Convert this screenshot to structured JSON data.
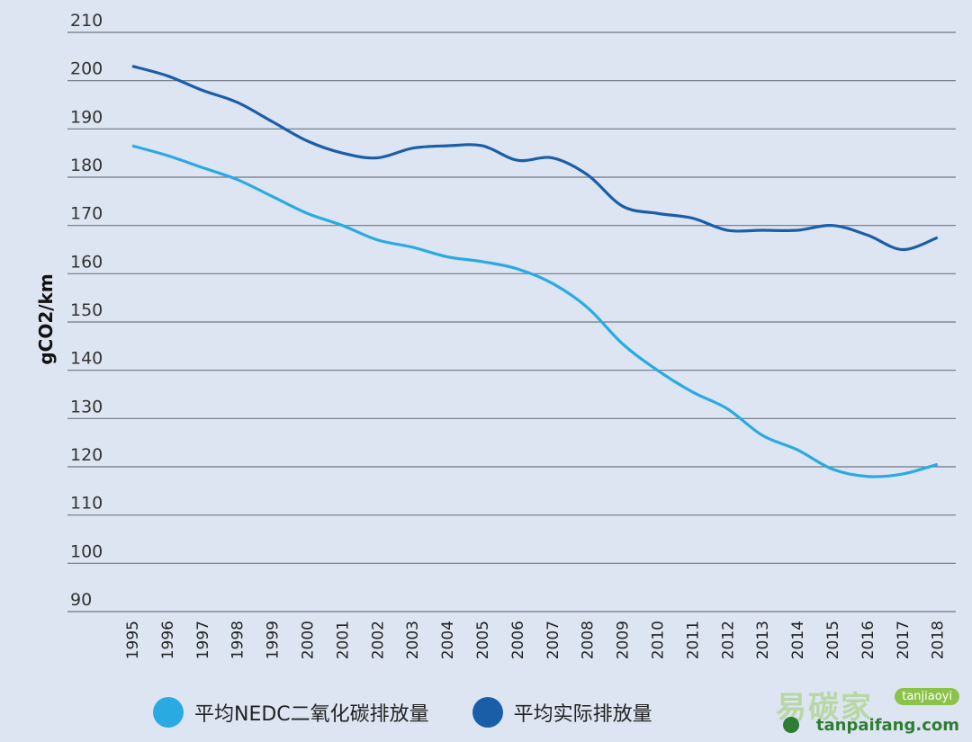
{
  "chart_data": {
    "type": "line",
    "ylabel": "gCO2/km",
    "xlabel": "",
    "ylim": [
      90,
      210
    ],
    "yticks": [
      90,
      100,
      110,
      120,
      130,
      140,
      150,
      160,
      170,
      180,
      190,
      200,
      210
    ],
    "grid": true,
    "legend_position": "bottom",
    "x": [
      "1995",
      "1996",
      "1997",
      "1998",
      "1999",
      "2000",
      "2001",
      "2002",
      "2003",
      "2004",
      "2005",
      "2006",
      "2007",
      "2008",
      "2009",
      "2010",
      "2011",
      "2012",
      "2013",
      "2014",
      "2015",
      "2016",
      "2017",
      "2018"
    ],
    "series": [
      {
        "name": "平均NEDC二氧化碳排放量",
        "color": "#29abe2",
        "values": [
          186.5,
          184.5,
          182,
          179.5,
          176,
          172.5,
          170,
          167,
          165.5,
          163.5,
          162.5,
          161,
          158,
          153,
          145.5,
          140,
          135.5,
          132,
          126.5,
          123.5,
          119.5,
          118,
          118.5,
          120.5
        ]
      },
      {
        "name": "平均实际排放量",
        "color": "#1b5ea8",
        "values": [
          203,
          201,
          198,
          195.5,
          191.5,
          187.5,
          185,
          184,
          186,
          186.5,
          186.5,
          183.5,
          184,
          180.5,
          174,
          172.5,
          171.5,
          169,
          169,
          169,
          170,
          168,
          165,
          167.5
        ]
      }
    ]
  },
  "legend": {
    "item1": "平均NEDC二氧化碳排放量",
    "item2": "平均实际排放量"
  },
  "watermark": {
    "cn": "易碳家",
    "pin": "tanjiaoyi",
    "url": "tanpaifang.com"
  }
}
